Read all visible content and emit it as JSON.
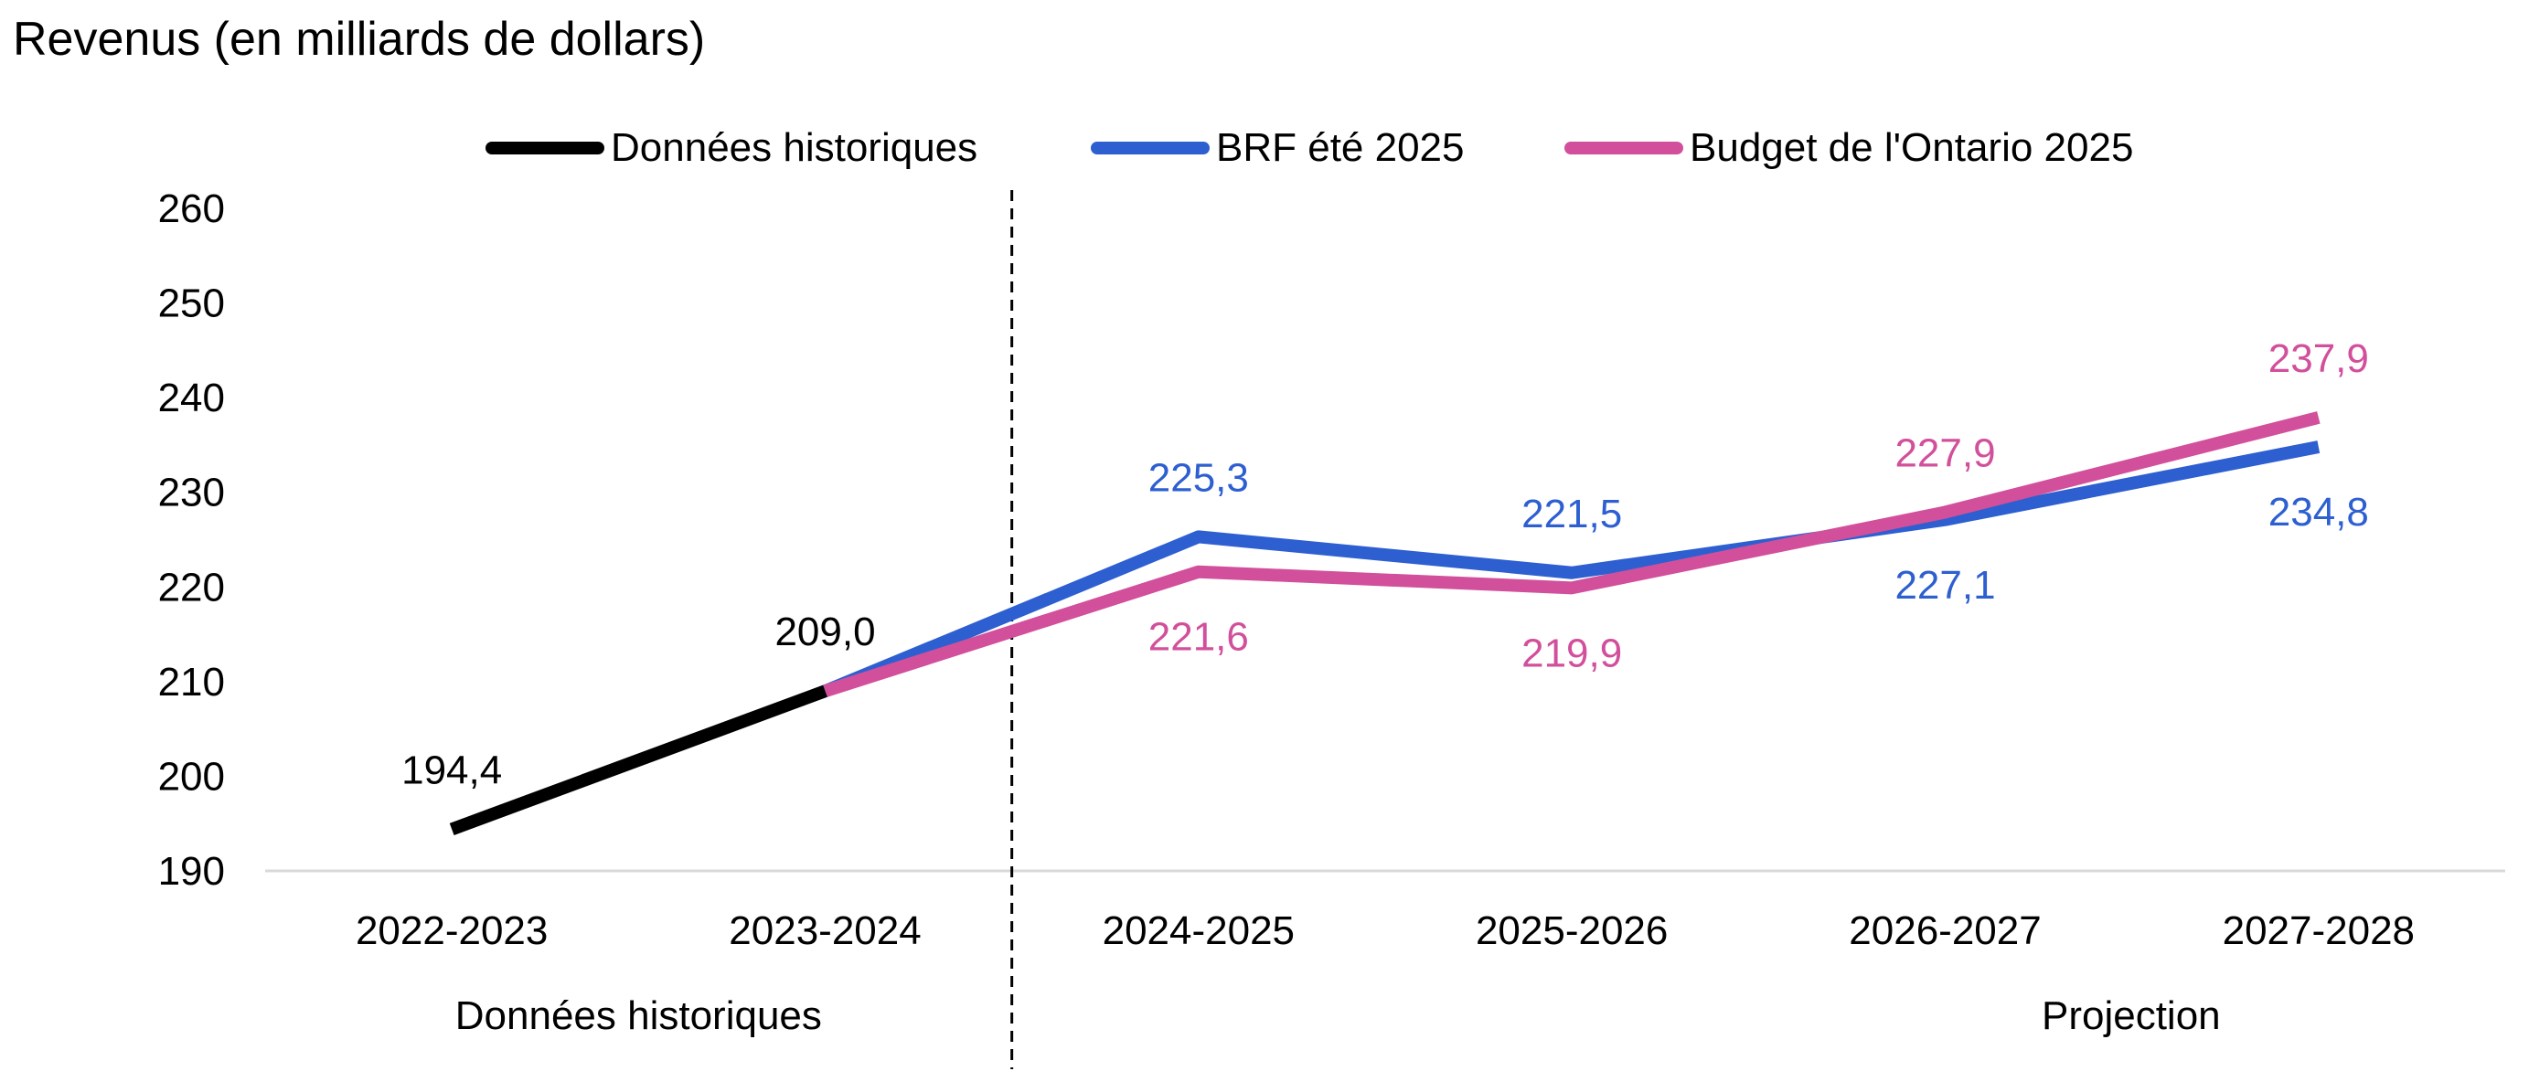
{
  "chart_data": {
    "type": "line",
    "title": "Revenus (en milliards de dollars)",
    "xlabel": "",
    "ylabel": "",
    "ylim": [
      190,
      260
    ],
    "yticks": [
      190,
      200,
      210,
      220,
      230,
      240,
      250,
      260
    ],
    "grid": false,
    "legend_position": "top",
    "categories": [
      "2022-2023",
      "2023-2024",
      "2024-2025",
      "2025-2026",
      "2026-2027",
      "2027-2028"
    ],
    "divider_after_category": "2023-2024",
    "group_labels": [
      "Données historiques",
      "Projection"
    ],
    "series": [
      {
        "name": "Données historiques",
        "color": "#000000",
        "values": [
          194.4,
          209.0,
          null,
          null,
          null,
          null
        ],
        "labels": [
          "194,4",
          "209,0",
          null,
          null,
          null,
          null
        ],
        "label_positions": [
          "above",
          "above",
          null,
          null,
          null,
          null
        ]
      },
      {
        "name": "BRF été 2025",
        "color": "#2D5FD1",
        "values": [
          null,
          209.0,
          225.3,
          221.5,
          227.1,
          234.8
        ],
        "labels": [
          null,
          null,
          "225,3",
          "221,5",
          "227,1",
          "234,8"
        ],
        "label_positions": [
          null,
          null,
          "above",
          "above",
          "below",
          "below"
        ]
      },
      {
        "name": "Budget de l'Ontario 2025",
        "color": "#D24F9B",
        "values": [
          null,
          209.0,
          221.6,
          219.9,
          227.9,
          237.9
        ],
        "labels": [
          null,
          null,
          "221,6",
          "219,9",
          "227,9",
          "237,9"
        ],
        "label_positions": [
          null,
          null,
          "below",
          "below",
          "above",
          "above"
        ]
      }
    ]
  }
}
